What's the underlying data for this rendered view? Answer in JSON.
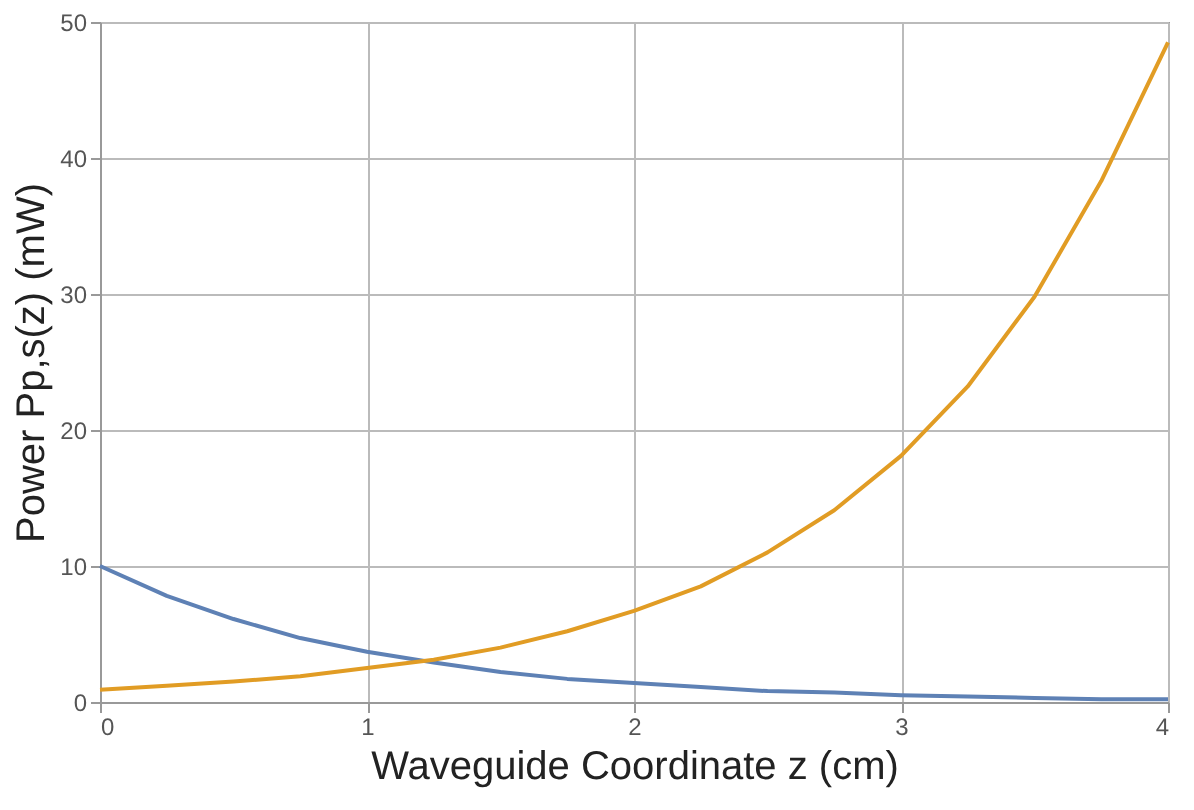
{
  "chart_data": {
    "type": "line",
    "xlabel": "Waveguide Coordinate z  (cm)",
    "ylabel": "Power  Pp,s(z)  (mW)",
    "x": [
      0,
      0.25,
      0.5,
      0.75,
      1,
      1.25,
      1.5,
      1.75,
      2,
      2.25,
      2.5,
      2.75,
      3,
      3.25,
      3.5,
      3.75,
      4
    ],
    "series": [
      {
        "color": "#5e81b5",
        "values": [
          10,
          7.8,
          6.1,
          4.7,
          3.7,
          2.9,
          2.2,
          1.7,
          1.4,
          1.1,
          0.8,
          0.7,
          0.5,
          0.4,
          0.3,
          0.2,
          0.2
        ]
      },
      {
        "color": "#e19c24",
        "values": [
          0.9,
          1.2,
          1.5,
          1.9,
          2.5,
          3.1,
          4.0,
          5.2,
          6.7,
          8.5,
          11,
          14.1,
          18.1,
          23.2,
          29.8,
          38.3,
          48.5
        ]
      }
    ],
    "xlim": [
      0,
      4
    ],
    "ylim": [
      0,
      50
    ],
    "xticks": [
      0,
      1,
      2,
      3,
      4
    ],
    "yticks": [
      0,
      10,
      20,
      30,
      40,
      50
    ],
    "grid": true,
    "marker": "none",
    "line_style": "solid"
  }
}
